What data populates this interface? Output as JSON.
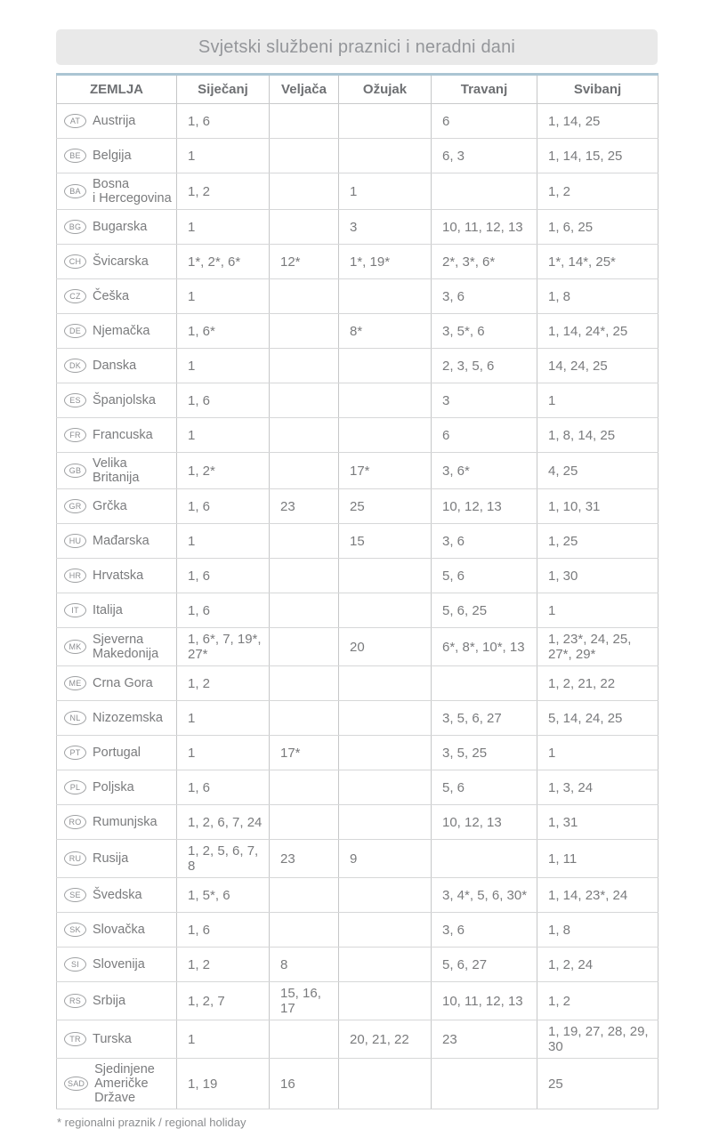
{
  "title": "Svjetski službeni praznici i neradni dani",
  "footnote": "* regionalni praznik / regional holiday",
  "colors": {
    "table_top_border": "#abc5d3",
    "banner_bg": "#e9e9e9",
    "border_gray": "#c6c7c8",
    "text_gray": "#7a7b7d"
  },
  "table": {
    "headers": [
      "ZEMLJA",
      "Siječanj",
      "Veljača",
      "Ožujak",
      "Travanj",
      "Svibanj"
    ],
    "rows": [
      {
        "code": "AT",
        "country": "Austrija",
        "months": [
          "1, 6",
          "",
          "",
          "6",
          "1, 14, 25"
        ]
      },
      {
        "code": "BE",
        "country": "Belgija",
        "months": [
          "1",
          "",
          "",
          "6, 3",
          "1, 14, 15, 25"
        ]
      },
      {
        "code": "BA",
        "country": "Bosna\ni Hercegovina",
        "months": [
          "1, 2",
          "",
          "1",
          "",
          "1, 2"
        ]
      },
      {
        "code": "BG",
        "country": "Bugarska",
        "months": [
          "1",
          "",
          "3",
          "10, 11, 12, 13",
          "1, 6, 25"
        ]
      },
      {
        "code": "CH",
        "country": "Švicarska",
        "months": [
          "1*, 2*, 6*",
          "12*",
          "1*, 19*",
          "2*, 3*, 6*",
          "1*, 14*, 25*"
        ]
      },
      {
        "code": "CZ",
        "country": "Češka",
        "months": [
          "1",
          "",
          "",
          "3, 6",
          "1, 8"
        ]
      },
      {
        "code": "DE",
        "country": "Njemačka",
        "months": [
          "1, 6*",
          "",
          "8*",
          "3, 5*, 6",
          "1, 14, 24*, 25"
        ]
      },
      {
        "code": "DK",
        "country": "Danska",
        "months": [
          "1",
          "",
          "",
          "2, 3, 5, 6",
          "14, 24, 25"
        ]
      },
      {
        "code": "ES",
        "country": "Španjolska",
        "months": [
          "1, 6",
          "",
          "",
          "3",
          "1"
        ]
      },
      {
        "code": "FR",
        "country": "Francuska",
        "months": [
          "1",
          "",
          "",
          "6",
          "1, 8, 14, 25"
        ]
      },
      {
        "code": "GB",
        "country": "Velika Britanija",
        "months": [
          "1, 2*",
          "",
          "17*",
          "3, 6*",
          "4, 25"
        ]
      },
      {
        "code": "GR",
        "country": "Grčka",
        "months": [
          "1, 6",
          "23",
          "25",
          "10, 12, 13",
          "1, 10, 31"
        ]
      },
      {
        "code": "HU",
        "country": "Mađarska",
        "months": [
          "1",
          "",
          "15",
          "3, 6",
          "1, 25"
        ]
      },
      {
        "code": "HR",
        "country": "Hrvatska",
        "months": [
          "1, 6",
          "",
          "",
          "5, 6",
          "1, 30"
        ]
      },
      {
        "code": "IT",
        "country": "Italija",
        "months": [
          "1, 6",
          "",
          "",
          "5, 6, 25",
          "1"
        ]
      },
      {
        "code": "MK",
        "country": "Sjeverna\nMakedonija",
        "months": [
          "1, 6*, 7, 19*, 27*",
          "",
          "20",
          "6*, 8*, 10*, 13",
          "1, 23*, 24, 25, 27*, 29*"
        ]
      },
      {
        "code": "ME",
        "country": "Crna Gora",
        "months": [
          "1, 2",
          "",
          "",
          "",
          "1, 2, 21, 22"
        ]
      },
      {
        "code": "NL",
        "country": "Nizozemska",
        "months": [
          "1",
          "",
          "",
          "3, 5, 6, 27",
          "5, 14, 24, 25"
        ]
      },
      {
        "code": "PT",
        "country": "Portugal",
        "months": [
          "1",
          "17*",
          "",
          "3, 5, 25",
          "1"
        ]
      },
      {
        "code": "PL",
        "country": "Poljska",
        "months": [
          "1, 6",
          "",
          "",
          "5, 6",
          "1, 3, 24"
        ]
      },
      {
        "code": "RO",
        "country": "Rumunjska",
        "months": [
          "1, 2, 6, 7, 24",
          "",
          "",
          "10, 12, 13",
          "1, 31"
        ]
      },
      {
        "code": "RU",
        "country": "Rusija",
        "months": [
          "1, 2, 5, 6, 7, 8",
          "23",
          "9",
          "",
          "1, 11"
        ]
      },
      {
        "code": "SE",
        "country": "Švedska",
        "months": [
          "1, 5*, 6",
          "",
          "",
          "3, 4*, 5, 6, 30*",
          "1, 14, 23*, 24"
        ]
      },
      {
        "code": "SK",
        "country": "Slovačka",
        "months": [
          "1, 6",
          "",
          "",
          "3, 6",
          "1, 8"
        ]
      },
      {
        "code": "SI",
        "country": "Slovenija",
        "months": [
          "1, 2",
          "8",
          "",
          "5, 6, 27",
          "1, 2, 24"
        ]
      },
      {
        "code": "RS",
        "country": "Srbija",
        "months": [
          "1, 2, 7",
          "15, 16, 17",
          "",
          "10, 11, 12, 13",
          "1, 2"
        ]
      },
      {
        "code": "TR",
        "country": "Turska",
        "months": [
          "1",
          "",
          "20, 21, 22",
          "23",
          "1, 19, 27, 28, 29, 30"
        ]
      },
      {
        "code": "SAD",
        "country": "Sjedinjene\nAmeričke Države",
        "months": [
          "1, 19",
          "16",
          "",
          "",
          "25"
        ]
      }
    ]
  }
}
